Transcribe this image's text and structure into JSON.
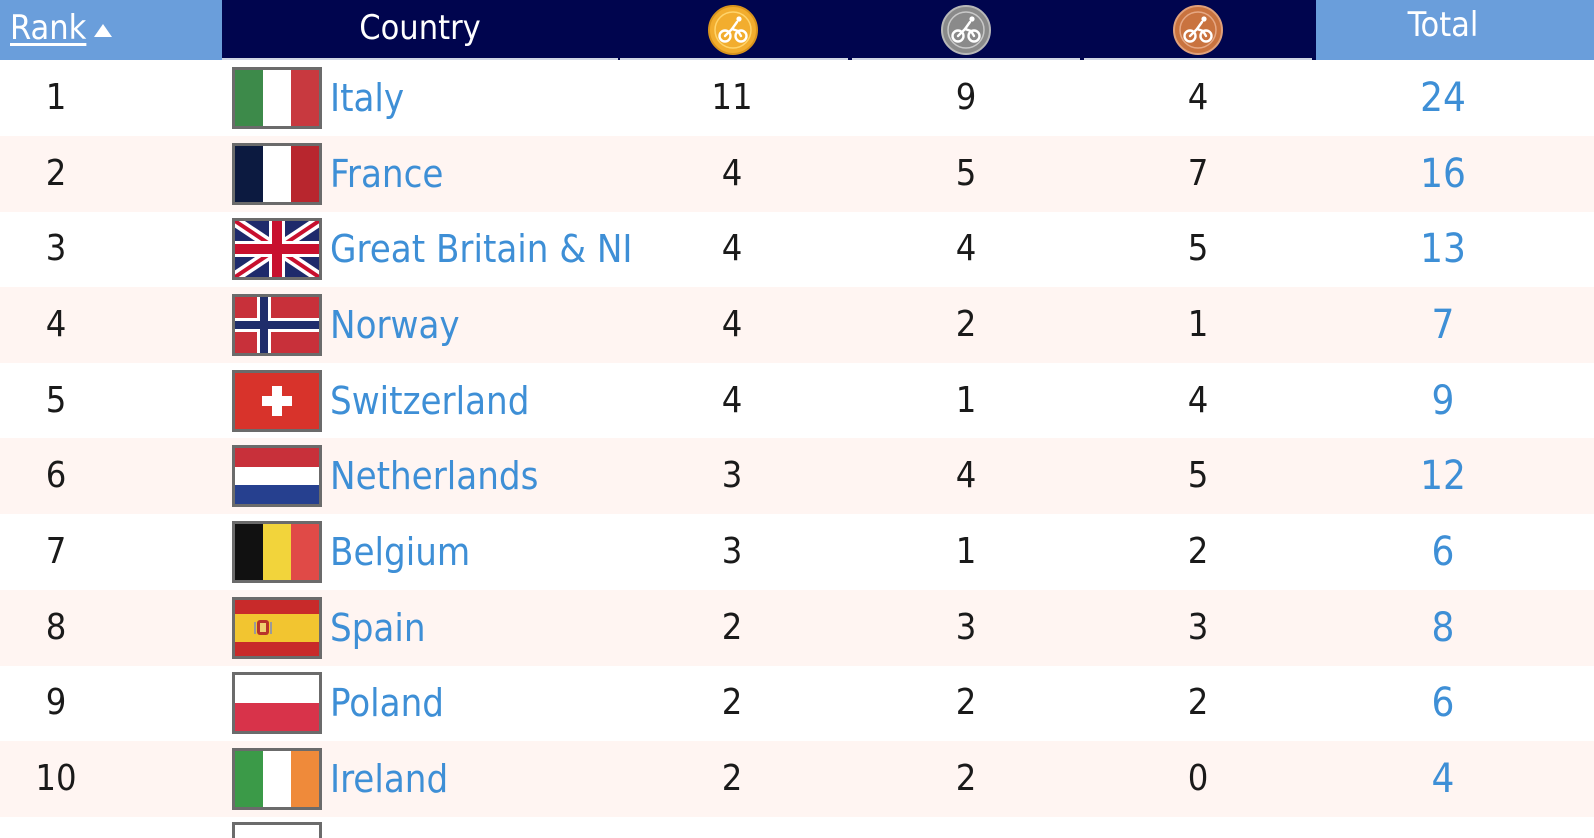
{
  "header": {
    "rank_label": "Rank",
    "country_label": "Country",
    "total_label": "Total",
    "gold_icon": "gold-medal-cycling-icon",
    "silver_icon": "silver-medal-cycling-icon",
    "bronze_icon": "bronze-medal-cycling-icon",
    "sort_icon": "sort-ascending-triangle-icon"
  },
  "colors": {
    "header_navy": "#00054e",
    "header_blue": "#6a9edb",
    "link_blue": "#3e8fd6",
    "row_alt": "#fff5f2",
    "gold": "#f2ad2e",
    "silver": "#8a8a8a",
    "bronze": "#c9733f"
  },
  "rows": [
    {
      "rank": "1",
      "flag": "italy-flag",
      "country": "Italy",
      "gold": "11",
      "silver": "9",
      "bronze": "4",
      "total": "24"
    },
    {
      "rank": "2",
      "flag": "france-flag",
      "country": "France",
      "gold": "4",
      "silver": "5",
      "bronze": "7",
      "total": "16"
    },
    {
      "rank": "3",
      "flag": "great-britain-flag",
      "country": "Great Britain & NI",
      "gold": "4",
      "silver": "4",
      "bronze": "5",
      "total": "13"
    },
    {
      "rank": "4",
      "flag": "norway-flag",
      "country": "Norway",
      "gold": "4",
      "silver": "2",
      "bronze": "1",
      "total": "7"
    },
    {
      "rank": "5",
      "flag": "switzerland-flag",
      "country": "Switzerland",
      "gold": "4",
      "silver": "1",
      "bronze": "4",
      "total": "9"
    },
    {
      "rank": "6",
      "flag": "netherlands-flag",
      "country": "Netherlands",
      "gold": "3",
      "silver": "4",
      "bronze": "5",
      "total": "12"
    },
    {
      "rank": "7",
      "flag": "belgium-flag",
      "country": "Belgium",
      "gold": "3",
      "silver": "1",
      "bronze": "2",
      "total": "6"
    },
    {
      "rank": "8",
      "flag": "spain-flag",
      "country": "Spain",
      "gold": "2",
      "silver": "3",
      "bronze": "3",
      "total": "8"
    },
    {
      "rank": "9",
      "flag": "poland-flag",
      "country": "Poland",
      "gold": "2",
      "silver": "2",
      "bronze": "2",
      "total": "6"
    },
    {
      "rank": "10",
      "flag": "ireland-flag",
      "country": "Ireland",
      "gold": "2",
      "silver": "2",
      "bronze": "0",
      "total": "4"
    }
  ]
}
